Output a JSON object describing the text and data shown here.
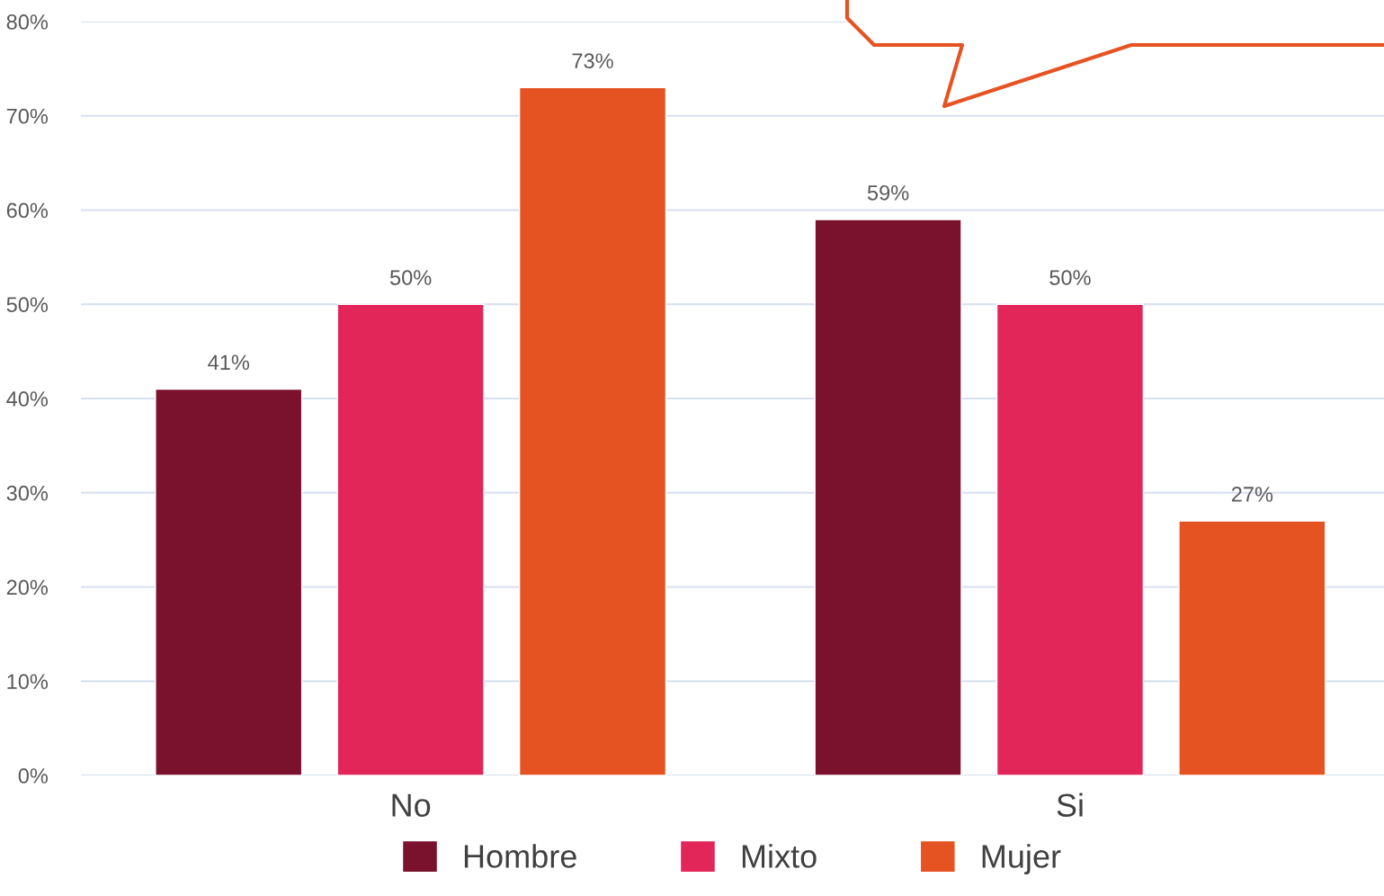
{
  "chart_data": {
    "type": "bar",
    "categories": [
      "No",
      "Si"
    ],
    "series": [
      {
        "name": "Hombre",
        "color": "#7b122d",
        "values": [
          41,
          59
        ],
        "value_labels": [
          "41%",
          "59%"
        ]
      },
      {
        "name": "Mixto",
        "color": "#e2265a",
        "values": [
          50,
          50
        ],
        "value_labels": [
          "50%",
          "50%"
        ]
      },
      {
        "name": "Mujer",
        "color": "#e65322",
        "values": [
          73,
          27
        ],
        "value_labels": [
          "73%",
          "27%"
        ]
      }
    ],
    "ylim": [
      0,
      80
    ],
    "yticks": [
      {
        "value": 0,
        "label": "0%"
      },
      {
        "value": 10,
        "label": "10%"
      },
      {
        "value": 20,
        "label": "20%"
      },
      {
        "value": 30,
        "label": "30%"
      },
      {
        "value": 40,
        "label": "40%"
      },
      {
        "value": 50,
        "label": "50%"
      },
      {
        "value": 60,
        "label": "60%"
      },
      {
        "value": 70,
        "label": "70%"
      },
      {
        "value": 80,
        "label": "80%"
      }
    ],
    "grid": "y",
    "legend": "bottom"
  }
}
